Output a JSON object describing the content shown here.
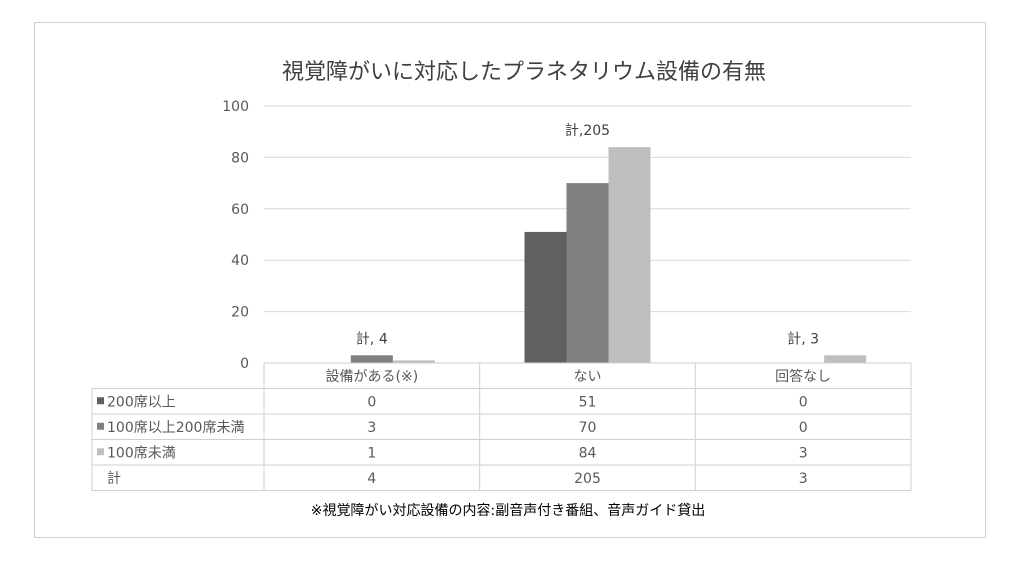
{
  "chart_data": {
    "type": "bar",
    "title": "視覚障がいに対応したプラネタリウム設備の有無",
    "categories": [
      "設備がある(※)",
      "ない",
      "回答なし"
    ],
    "series": [
      {
        "name": "200席以上",
        "values": [
          0,
          51,
          0
        ],
        "color": "#606060"
      },
      {
        "name": "100席以上200席未満",
        "values": [
          3,
          70,
          0
        ],
        "color": "#808080"
      },
      {
        "name": "100席未満",
        "values": [
          1,
          84,
          3
        ],
        "color": "#bfbfbf"
      }
    ],
    "totals": {
      "label": "計",
      "values": [
        4,
        205,
        3
      ]
    },
    "data_labels": [
      "計, 4",
      "計,205",
      "計, 3"
    ],
    "ylim": [
      0,
      100
    ],
    "yticks": [
      0,
      20,
      40,
      60,
      80,
      100
    ],
    "grid": true,
    "legend": "data-table",
    "footnote": "※視覚障がい対応設備の内容:副音声付き番組、音声ガイド貸出"
  }
}
